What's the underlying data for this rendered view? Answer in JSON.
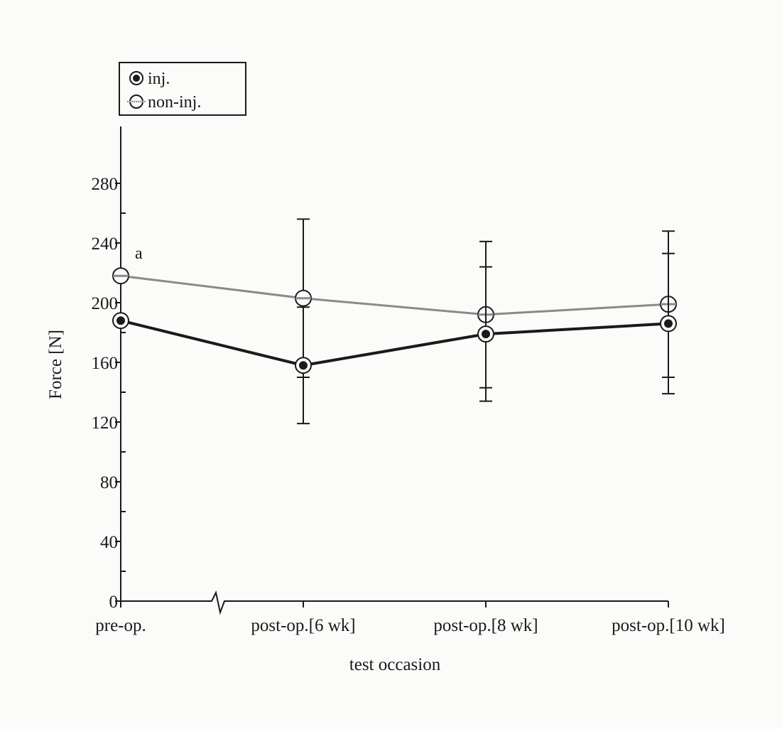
{
  "chart_data": {
    "type": "line",
    "title": "",
    "xlabel": "test occasion",
    "ylabel": "Force [N]",
    "categories": [
      "pre-op.",
      "post-op.[6 wk]",
      "post-op.[8 wk]",
      "post-op.[10 wk]"
    ],
    "y_ticks": [
      0,
      40,
      80,
      120,
      160,
      200,
      240,
      280
    ],
    "ylim": [
      0,
      300
    ],
    "grid": false,
    "legend_position": "top-left",
    "axis_break": "x-axis between pre-op. and post-op.[6 wk]",
    "series": [
      {
        "name": "inj.",
        "marker": "filled-circle",
        "color": "#1a1a1a",
        "values": [
          188,
          158,
          179,
          186
        ],
        "error": [
          null,
          39,
          45,
          47
        ]
      },
      {
        "name": "non-inj.",
        "marker": "open-circle",
        "color": "#8a8a8a",
        "values": [
          218,
          203,
          192,
          199
        ],
        "error": [
          null,
          53,
          49,
          49
        ]
      }
    ],
    "annotations": [
      {
        "text": "a",
        "category": "pre-op.",
        "series": "non-inj."
      }
    ]
  }
}
